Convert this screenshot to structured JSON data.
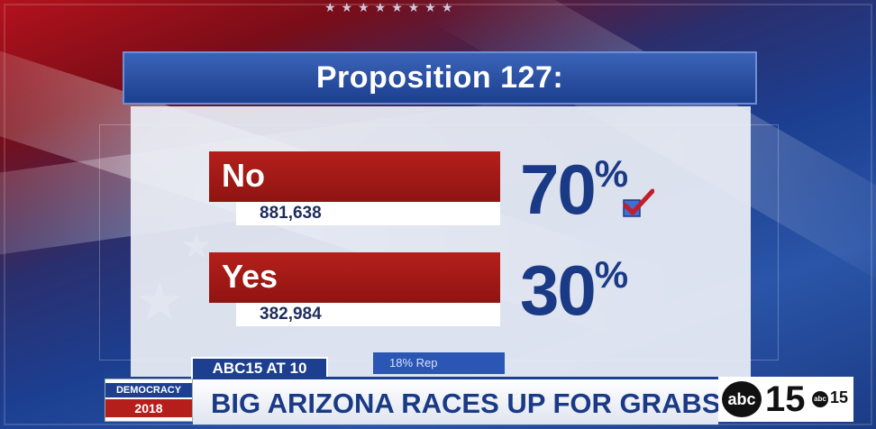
{
  "title": "Proposition 127:",
  "results": [
    {
      "label": "No",
      "votes": "881,638",
      "percent_number": "70",
      "percent_sign": "%",
      "winner": true
    },
    {
      "label": "Yes",
      "votes": "382,984",
      "percent_number": "30",
      "percent_sign": "%",
      "winner": false
    }
  ],
  "lower_third": {
    "show": "ABC15 AT 10",
    "reporting": "18% Rep",
    "badge_top": "DEMOCRACY",
    "badge_bottom": "2018",
    "headline": "BIG ARIZONA RACES UP FOR GRABS"
  },
  "logo": {
    "abc": "abc",
    "channel": "15",
    "mini_abc": "abc",
    "mini_channel": "15"
  },
  "colors": {
    "accent_red": "#b51f1b",
    "accent_blue": "#1b3a86",
    "check": "#c21d2b"
  }
}
